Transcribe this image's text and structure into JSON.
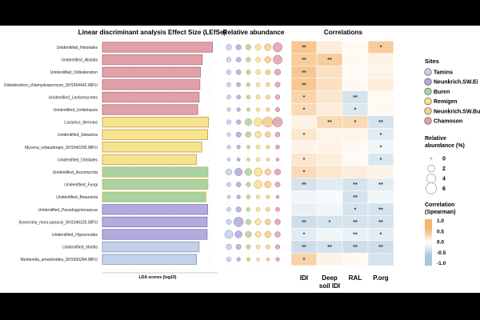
{
  "chart_data": [
    {
      "type": "bar",
      "orientation": "horizontal",
      "title": "Linear discriminant analysis Effect Size (LEfSe)",
      "xlabel": "LDA scores (log10)",
      "xlim": [
        0,
        4.2
      ],
      "categories": [
        "Unidentified_Helotiales",
        "Unidentified_Absidia",
        "Unidentified_Oidiodendron",
        "Oidiodendron_chlamydosporicum_SH1564442.08FU",
        "Unidentified_Leotiomycetes",
        "Unidentified_Umbelopsis",
        "Lactarius_blennius",
        "Unidentified_Sebacina",
        "Mycena_rebaudengoi_SH1542295.08FU",
        "Unidentified_Orbiliales",
        "Unidentified_Ascomycota",
        "Unidentified_Fungi",
        "Unidentified_Beauveria",
        "Unidentified_Pseudogymnoascus",
        "Ilyonectria_mors-panacis_SH1546325.08FU",
        "Unidentified_Hypocreales",
        "Unidentified_Idriella",
        "Mortierella_amoeboidea_SH1650284.08FU"
      ],
      "values": [
        4.1,
        3.72,
        3.65,
        3.63,
        3.6,
        3.55,
        3.95,
        3.92,
        3.7,
        3.5,
        3.93,
        3.93,
        3.85,
        3.92,
        3.9,
        3.9,
        3.6,
        3.5
      ],
      "group": [
        "Chamoson",
        "Chamoson",
        "Chamoson",
        "Chamoson",
        "Chamoson",
        "Chamoson",
        "Remigen",
        "Remigen",
        "Remigen",
        "Remigen",
        "Buren",
        "Buren",
        "Buren",
        "Neunkrich.SW.Ei",
        "Neunkrich.SW.Ei",
        "Neunkrich.SW.Ei",
        "Tamins",
        "Tamins"
      ]
    },
    {
      "type": "scatter",
      "subtype": "bubble",
      "title": "Relative abundance",
      "columns": [
        "Tamins",
        "Neunkrich.SW.Ei",
        "Buren",
        "Remigen",
        "Neunkrich.SW.Bu",
        "Chamoson"
      ],
      "size_legend_title": "Relative abundance (%)",
      "size_legend_values": [
        0,
        2,
        4,
        6
      ],
      "abundance": [
        [
          0.8,
          0.7,
          0.8,
          0.9,
          1.4,
          3.2
        ],
        [
          0.5,
          0.5,
          0.5,
          0.6,
          1.2,
          3.0
        ],
        [
          0.5,
          0.5,
          0.5,
          0.5,
          0.6,
          1.1
        ],
        [
          0.3,
          0.3,
          0.3,
          0.3,
          0.3,
          0.6
        ],
        [
          0.3,
          0.3,
          0.3,
          0.3,
          0.3,
          0.5
        ],
        [
          0.2,
          0.2,
          0.2,
          0.2,
          0.2,
          0.4
        ],
        [
          0.4,
          0.4,
          1.6,
          2.2,
          4.2,
          3.6
        ],
        [
          0.2,
          0.6,
          0.9,
          1.2,
          0.8,
          0.5
        ],
        [
          0.2,
          0.2,
          0.2,
          0.3,
          0.2,
          0.3
        ],
        [
          0.1,
          0.1,
          0.1,
          0.3,
          0.1,
          0.1
        ],
        [
          1.0,
          1.9,
          1.7,
          2.4,
          1.2,
          1.0
        ],
        [
          0.3,
          0.5,
          0.5,
          2.4,
          1.4,
          0.6
        ],
        [
          0.1,
          0.2,
          0.3,
          0.2,
          0.2,
          0.1
        ],
        [
          0.3,
          0.7,
          0.3,
          0.3,
          0.3,
          0.3
        ],
        [
          0.6,
          3.4,
          0.8,
          1.0,
          0.8,
          0.8
        ],
        [
          2.4,
          1.6,
          1.2,
          0.9,
          1.2,
          0.8
        ],
        [
          0.8,
          0.6,
          0.4,
          0.3,
          0.3,
          0.4
        ],
        [
          0.4,
          0.2,
          0.2,
          0.1,
          0.1,
          0.2
        ]
      ]
    },
    {
      "type": "heatmap",
      "title": "Correlations",
      "columns": [
        "IDI",
        "Deep soil IDI",
        "RAL",
        "P.org"
      ],
      "color_legend_title": "Correlation (Spearman)",
      "color_scale_ticks": [
        1.0,
        0.5,
        0.0,
        -0.5,
        -1.0
      ],
      "values": [
        [
          0.45,
          0.15,
          0.05,
          0.4
        ],
        [
          0.4,
          0.4,
          0.05,
          0.1
        ],
        [
          0.45,
          0.25,
          0.05,
          0.1
        ],
        [
          0.45,
          0.25,
          0.05,
          0.15
        ],
        [
          0.35,
          0.2,
          -0.3,
          0.05
        ],
        [
          0.3,
          0.15,
          -0.25,
          0.05
        ],
        [
          0.1,
          0.3,
          0.3,
          -0.3
        ],
        [
          0.2,
          0.1,
          0.1,
          -0.2
        ],
        [
          0.1,
          0.1,
          0.05,
          -0.1
        ],
        [
          0.2,
          0.15,
          0.05,
          -0.25
        ],
        [
          0.3,
          0.2,
          0.15,
          0.1
        ],
        [
          -0.3,
          -0.2,
          -0.3,
          -0.2
        ],
        [
          -0.1,
          -0.05,
          -0.3,
          -0.1
        ],
        [
          -0.15,
          -0.1,
          -0.3,
          -0.3
        ],
        [
          -0.35,
          -0.3,
          -0.3,
          -0.3
        ],
        [
          -0.2,
          -0.1,
          -0.15,
          -0.2
        ],
        [
          -0.35,
          -0.3,
          -0.35,
          -0.35
        ],
        [
          0.35,
          0.1,
          0.05,
          -0.3
        ]
      ],
      "significance": [
        [
          "**",
          "",
          "",
          "*"
        ],
        [
          "**",
          "**",
          "",
          ""
        ],
        [
          "**",
          "",
          "",
          ""
        ],
        [
          "**",
          "",
          "",
          ""
        ],
        [
          "*",
          "",
          "**",
          ""
        ],
        [
          "*",
          "",
          "*",
          ""
        ],
        [
          "",
          "**",
          "*",
          "**"
        ],
        [
          "*",
          "",
          "",
          "*"
        ],
        [
          "",
          "",
          "",
          "*"
        ],
        [
          "*",
          "",
          "",
          "*"
        ],
        [
          "*",
          "",
          "",
          ""
        ],
        [
          "**",
          "",
          "**",
          "**"
        ],
        [
          "",
          "",
          "**",
          ""
        ],
        [
          "",
          "",
          "*",
          "**"
        ],
        [
          "**",
          "*",
          "**",
          "**"
        ],
        [
          "*",
          "",
          "**",
          "*"
        ],
        [
          "**",
          "**",
          "**",
          "**"
        ],
        [
          "*",
          "",
          "",
          ""
        ]
      ]
    }
  ],
  "legend": {
    "sites_title": "Sites",
    "sites": [
      "Tamins",
      "Neunkrich.SW.Ei",
      "Buren",
      "Remigen",
      "Neunkrich.SW.Bu",
      "Chamoson"
    ],
    "site_colors": [
      "#c3d2ea",
      "#b2abde",
      "#a9d3a3",
      "#f7e48e",
      "#f6cd8e",
      "#e0a1a8"
    ]
  }
}
